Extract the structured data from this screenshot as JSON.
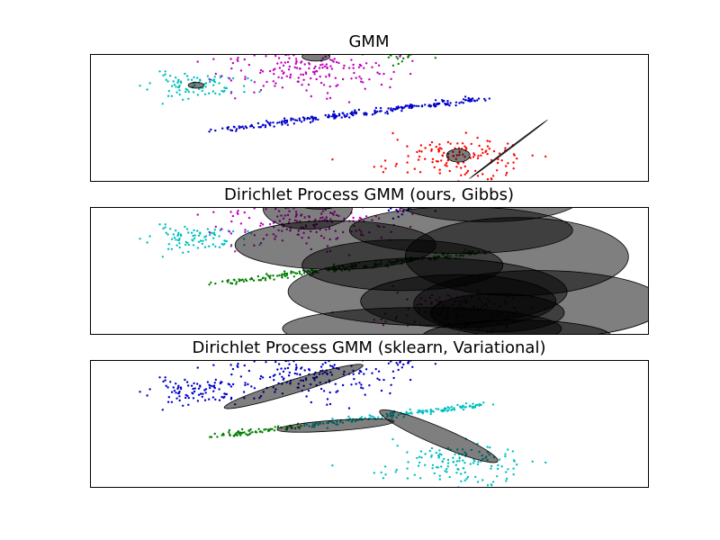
{
  "chart_data": [
    {
      "type": "scatter",
      "title": "GMM",
      "xlim": [
        -10,
        10
      ],
      "ylim": [
        -6,
        6
      ],
      "grid": false,
      "point_size": 1.2,
      "clusters": [
        {
          "name": "",
          "color": "#00bfbf",
          "cx": -6.2,
          "cy": 3.0,
          "sx": 0.85,
          "sy": 0.6,
          "n": 90,
          "seed": 11
        },
        {
          "name": "",
          "color": "#bf00bf",
          "cx": -2.2,
          "cy": 5.0,
          "sx": 1.6,
          "sy": 1.3,
          "n": 230,
          "seed": 12
        },
        {
          "name": "",
          "color": "#008000",
          "cx": 1.1,
          "cy": 6.3,
          "sx": 0.5,
          "sy": 0.5,
          "n": 60,
          "seed": 13
        },
        {
          "name": "",
          "color": "#0000cc",
          "line": {
            "x0": -5.5,
            "y0": -1.2,
            "x1": 4.0,
            "y1": 1.8,
            "spread": 0.12
          },
          "n": 230,
          "seed": 14
        },
        {
          "name": "",
          "color": "#ff0000",
          "cx": 3.2,
          "cy": -3.8,
          "sx": 1.3,
          "sy": 1.1,
          "n": 140,
          "seed": 15
        }
      ],
      "ellipses": [
        {
          "cx": -6.2,
          "cy": 3.05,
          "rx": 0.28,
          "ry": 0.28,
          "angle": 0
        },
        {
          "cx": -1.9,
          "cy": 5.75,
          "rx": 0.5,
          "ry": 0.42,
          "angle": 0
        },
        {
          "cx": 3.2,
          "cy": -3.6,
          "rx": 0.42,
          "ry": 0.62,
          "angle": 0
        },
        {
          "cx": 5.0,
          "cy": -3.0,
          "rx": 1.75,
          "ry": 0.04,
          "angle": -37
        }
      ]
    },
    {
      "type": "scatter",
      "title": "Dirichlet Process GMM (ours, Gibbs)",
      "xlim": [
        -10,
        10
      ],
      "ylim": [
        -6,
        6
      ],
      "grid": false,
      "point_size": 1.2,
      "clusters": [
        {
          "name": "",
          "color": "#00bfbf",
          "cx": -6.2,
          "cy": 3.0,
          "sx": 0.85,
          "sy": 0.6,
          "n": 90,
          "seed": 11
        },
        {
          "name": "",
          "color": "#bf00bf",
          "cx": -2.2,
          "cy": 5.0,
          "sx": 1.6,
          "sy": 1.3,
          "n": 230,
          "seed": 12
        },
        {
          "name": "",
          "color": "#0000cc",
          "cx": 1.1,
          "cy": 6.3,
          "sx": 0.5,
          "sy": 0.5,
          "n": 60,
          "seed": 13
        },
        {
          "name": "",
          "color": "#008000",
          "line": {
            "x0": -5.5,
            "y0": -1.2,
            "x1": 4.0,
            "y1": 1.8,
            "spread": 0.12
          },
          "n": 230,
          "seed": 14
        },
        {
          "name": "",
          "color": "#bf00bf",
          "cx": 3.2,
          "cy": -3.8,
          "sx": 1.3,
          "sy": 1.1,
          "n": 140,
          "seed": 15
        }
      ],
      "ellipses": [
        {
          "cx": -1.2,
          "cy": 2.4,
          "rx": 3.6,
          "ry": 2.3,
          "angle": 0
        },
        {
          "cx": -2.2,
          "cy": 5.9,
          "rx": 1.6,
          "ry": 2.0,
          "angle": 0
        },
        {
          "cx": -1.8,
          "cy": 6.8,
          "rx": 1.0,
          "ry": 1.0,
          "angle": 0
        },
        {
          "cx": 4.2,
          "cy": 6.9,
          "rx": 3.4,
          "ry": 2.3,
          "angle": 0
        },
        {
          "cx": 3.3,
          "cy": 3.8,
          "rx": 4.0,
          "ry": 2.2,
          "angle": 0
        },
        {
          "cx": 5.3,
          "cy": 1.3,
          "rx": 4.0,
          "ry": 3.7,
          "angle": 0
        },
        {
          "cx": 1.2,
          "cy": 0.5,
          "rx": 3.6,
          "ry": 2.4,
          "angle": 0
        },
        {
          "cx": 2.1,
          "cy": -2.0,
          "rx": 5.0,
          "ry": 3.2,
          "angle": 0
        },
        {
          "cx": 3.2,
          "cy": -2.9,
          "rx": 3.5,
          "ry": 2.5,
          "angle": 0
        },
        {
          "cx": 6.1,
          "cy": -3.2,
          "rx": 4.5,
          "ry": 3.2,
          "angle": 0
        },
        {
          "cx": 4.6,
          "cy": -4.0,
          "rx": 2.4,
          "ry": 1.8,
          "angle": 0
        },
        {
          "cx": 1.9,
          "cy": -5.5,
          "rx": 5.0,
          "ry": 2.0,
          "angle": 0
        },
        {
          "cx": 5.3,
          "cy": -6.3,
          "rx": 3.4,
          "ry": 1.6,
          "angle": 0
        }
      ]
    },
    {
      "type": "scatter",
      "title": "Dirichlet Process GMM (sklearn, Variational)",
      "xlim": [
        -10,
        10
      ],
      "ylim": [
        -6,
        6
      ],
      "grid": false,
      "point_size": 1.2,
      "clusters": [
        {
          "name": "",
          "color": "#0000cc",
          "cx": -6.2,
          "cy": 3.0,
          "sx": 0.85,
          "sy": 0.6,
          "n": 90,
          "seed": 11
        },
        {
          "name": "",
          "color": "#0000cc",
          "cx": -2.2,
          "cy": 5.0,
          "sx": 1.6,
          "sy": 1.3,
          "n": 230,
          "seed": 12
        },
        {
          "name": "",
          "color": "#0000cc",
          "cx": 1.1,
          "cy": 6.3,
          "sx": 0.5,
          "sy": 0.5,
          "n": 60,
          "seed": 13
        },
        {
          "name": "",
          "color": "#008000",
          "line": {
            "x0": -5.5,
            "y0": -1.2,
            "x1": -2.5,
            "y1": -0.3,
            "spread": 0.12
          },
          "n": 70,
          "seed": 16
        },
        {
          "name": "",
          "color": "#00bfbf",
          "line": {
            "x0": -2.5,
            "y0": -0.3,
            "x1": 4.0,
            "y1": 1.8,
            "spread": 0.12
          },
          "n": 160,
          "seed": 17
        },
        {
          "name": "",
          "color": "#00bfbf",
          "cx": 3.2,
          "cy": -3.8,
          "sx": 1.3,
          "sy": 1.1,
          "n": 140,
          "seed": 15
        }
      ],
      "ellipses": [
        {
          "cx": -2.7,
          "cy": 3.5,
          "rx": 2.6,
          "ry": 0.65,
          "angle": -17
        },
        {
          "cx": -1.2,
          "cy": -0.2,
          "rx": 2.1,
          "ry": 0.5,
          "angle": -4
        },
        {
          "cx": 2.5,
          "cy": -1.2,
          "rx": 2.3,
          "ry": 0.85,
          "angle": 23
        }
      ]
    }
  ]
}
